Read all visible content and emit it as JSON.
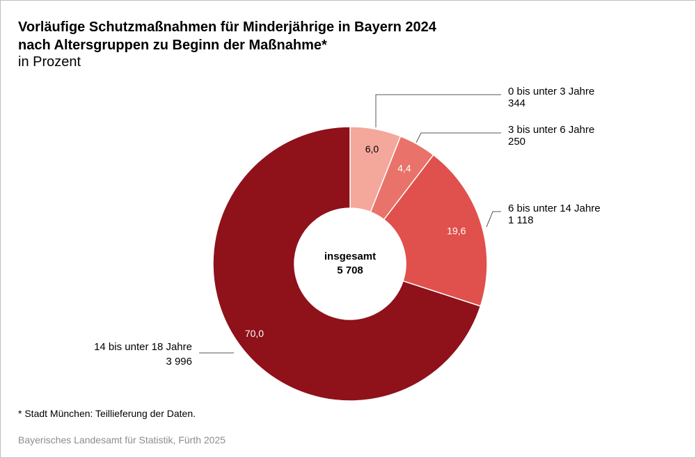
{
  "title_line1": "Vorläufige Schutzmaßnahmen für Minderjährige in Bayern 2024",
  "title_line2": "nach Altersgruppen zu Beginn der Maßnahme*",
  "subtitle": "in Prozent",
  "footnote": "* Stadt München: Teillieferung der Daten.",
  "source": "Bayerisches Landesamt für Statistik, Fürth 2025",
  "chart_data": {
    "type": "pie",
    "style": "donut",
    "center_label": "insgesamt",
    "center_value": "5 708",
    "slices": [
      {
        "label": "0 bis unter 3 Jahre",
        "count": "344",
        "percent": 6.0,
        "percent_label": "6,0",
        "color": "#f4a79b"
      },
      {
        "label": "3 bis unter 6 Jahre",
        "count": "250",
        "percent": 4.4,
        "percent_label": "4,4",
        "color": "#e9726a"
      },
      {
        "label": "6 bis unter 14 Jahre",
        "count": "1 118",
        "percent": 19.6,
        "percent_label": "19,6",
        "color": "#e0504c"
      },
      {
        "label": "14 bis unter 18 Jahre",
        "count": "3 996",
        "percent": 70.0,
        "percent_label": "70,0",
        "color": "#8f111a"
      }
    ]
  }
}
